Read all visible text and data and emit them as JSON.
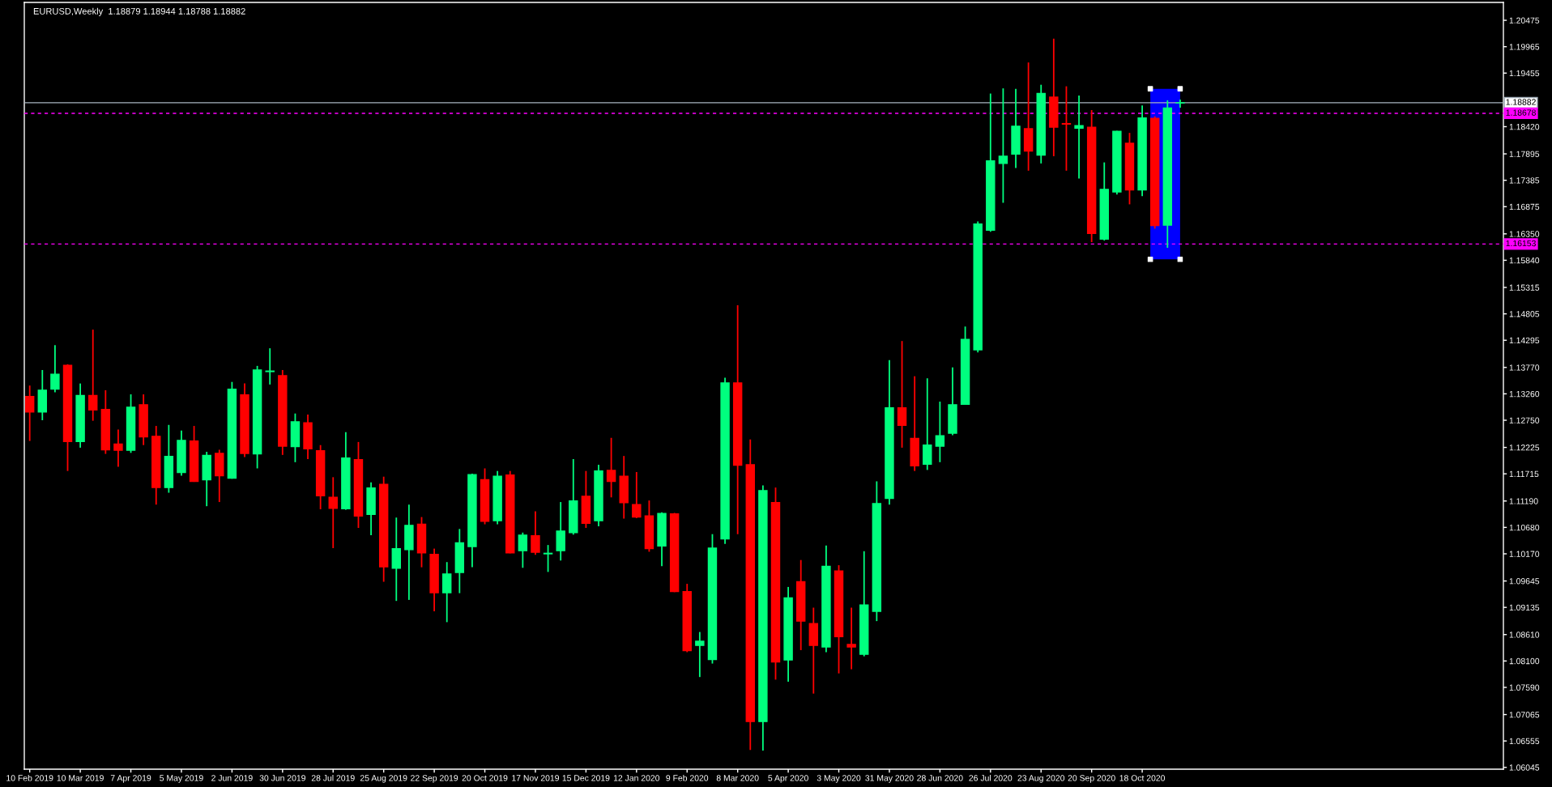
{
  "chart_data": {
    "type": "candlestick",
    "title": "EURUSD,Weekly  1.18879 1.18944 1.18788 1.18882",
    "x": [
      "2019-02-10",
      "2019-02-17",
      "2019-02-24",
      "2019-03-03",
      "2019-03-10",
      "2019-03-17",
      "2019-03-24",
      "2019-03-31",
      "2019-04-07",
      "2019-04-14",
      "2019-04-21",
      "2019-04-28",
      "2019-05-05",
      "2019-05-12",
      "2019-05-19",
      "2019-05-26",
      "2019-06-02",
      "2019-06-09",
      "2019-06-16",
      "2019-06-23",
      "2019-06-30",
      "2019-07-07",
      "2019-07-14",
      "2019-07-21",
      "2019-07-28",
      "2019-08-04",
      "2019-08-11",
      "2019-08-18",
      "2019-08-25",
      "2019-09-01",
      "2019-09-08",
      "2019-09-15",
      "2019-09-22",
      "2019-09-29",
      "2019-10-06",
      "2019-10-13",
      "2019-10-20",
      "2019-10-27",
      "2019-11-03",
      "2019-11-10",
      "2019-11-17",
      "2019-11-24",
      "2019-12-01",
      "2019-12-08",
      "2019-12-15",
      "2019-12-22",
      "2019-12-29",
      "2020-01-05",
      "2020-01-12",
      "2020-01-19",
      "2020-01-26",
      "2020-02-02",
      "2020-02-09",
      "2020-02-16",
      "2020-02-23",
      "2020-03-01",
      "2020-03-08",
      "2020-03-15",
      "2020-03-22",
      "2020-03-29",
      "2020-04-05",
      "2020-04-12",
      "2020-04-19",
      "2020-04-26",
      "2020-05-03",
      "2020-05-10",
      "2020-05-17",
      "2020-05-24",
      "2020-05-31",
      "2020-06-07",
      "2020-06-14",
      "2020-06-21",
      "2020-06-28",
      "2020-07-05",
      "2020-07-12",
      "2020-07-19",
      "2020-07-26",
      "2020-08-02",
      "2020-08-09",
      "2020-08-16",
      "2020-08-23",
      "2020-08-30",
      "2020-09-06",
      "2020-09-13",
      "2020-09-20",
      "2020-09-27",
      "2020-10-04",
      "2020-10-11",
      "2020-10-18",
      "2020-10-25",
      "2020-11-01",
      "2020-11-08"
    ],
    "ohlc": [
      [
        1.1321,
        1.1342,
        1.1235,
        1.1291
      ],
      [
        1.1291,
        1.1372,
        1.1275,
        1.1333
      ],
      [
        1.1335,
        1.142,
        1.1329,
        1.1364
      ],
      [
        1.1381,
        1.1383,
        1.1177,
        1.1234
      ],
      [
        1.1234,
        1.1346,
        1.1222,
        1.1323
      ],
      [
        1.1323,
        1.145,
        1.1274,
        1.1295
      ],
      [
        1.1296,
        1.1333,
        1.121,
        1.1218
      ],
      [
        1.1229,
        1.1257,
        1.1185,
        1.1217
      ],
      [
        1.1217,
        1.1325,
        1.1212,
        1.13
      ],
      [
        1.1305,
        1.1325,
        1.1227,
        1.1243
      ],
      [
        1.1244,
        1.1264,
        1.1112,
        1.1145
      ],
      [
        1.1145,
        1.1266,
        1.1135,
        1.1205
      ],
      [
        1.1174,
        1.1255,
        1.1168,
        1.1236
      ],
      [
        1.1235,
        1.1264,
        1.1156,
        1.1157
      ],
      [
        1.116,
        1.1214,
        1.1109,
        1.1207
      ],
      [
        1.1211,
        1.1218,
        1.1117,
        1.1168
      ],
      [
        1.1163,
        1.1349,
        1.1162,
        1.1335
      ],
      [
        1.1324,
        1.1346,
        1.1204,
        1.1211
      ],
      [
        1.121,
        1.138,
        1.1182,
        1.1372
      ],
      [
        1.1369,
        1.1414,
        1.1344,
        1.137
      ],
      [
        1.1361,
        1.1372,
        1.1208,
        1.1225
      ],
      [
        1.1224,
        1.1288,
        1.1194,
        1.1272
      ],
      [
        1.127,
        1.1286,
        1.12,
        1.122
      ],
      [
        1.1216,
        1.1227,
        1.1103,
        1.1129
      ],
      [
        1.1126,
        1.1165,
        1.1028,
        1.1105
      ],
      [
        1.1104,
        1.1252,
        1.1102,
        1.1202
      ],
      [
        1.1199,
        1.1233,
        1.1067,
        1.109
      ],
      [
        1.1093,
        1.1155,
        1.1053,
        1.1144
      ],
      [
        1.1151,
        1.1166,
        1.0963,
        1.0992
      ],
      [
        1.0989,
        1.1087,
        1.0926,
        1.1027
      ],
      [
        1.1025,
        1.1112,
        1.0928,
        1.1072
      ],
      [
        1.1074,
        1.1088,
        1.0991,
        1.1019
      ],
      [
        1.1016,
        1.1027,
        1.0906,
        1.0942
      ],
      [
        1.0942,
        1.1001,
        1.0885,
        1.0978
      ],
      [
        1.0981,
        1.1065,
        1.0941,
        1.1038
      ],
      [
        1.1031,
        1.1172,
        1.0991,
        1.117
      ],
      [
        1.116,
        1.1182,
        1.1074,
        1.108
      ],
      [
        1.1081,
        1.1177,
        1.1074,
        1.1167
      ],
      [
        1.1169,
        1.1177,
        1.1018,
        1.1019
      ],
      [
        1.1023,
        1.1058,
        1.099,
        1.1053
      ],
      [
        1.1052,
        1.1099,
        1.1015,
        1.102
      ],
      [
        1.1017,
        1.1034,
        1.0982,
        1.1018
      ],
      [
        1.1023,
        1.1117,
        1.1004,
        1.1061
      ],
      [
        1.1058,
        1.12,
        1.1054,
        1.1119
      ],
      [
        1.1128,
        1.1177,
        1.1067,
        1.1076
      ],
      [
        1.1081,
        1.1189,
        1.107,
        1.1177
      ],
      [
        1.1178,
        1.1241,
        1.1126,
        1.1157
      ],
      [
        1.1167,
        1.1206,
        1.1085,
        1.1116
      ],
      [
        1.1112,
        1.1175,
        1.1086,
        1.1088
      ],
      [
        1.109,
        1.112,
        1.1021,
        1.1027
      ],
      [
        1.1032,
        1.1097,
        1.0993,
        1.1095
      ],
      [
        1.1094,
        1.1096,
        1.0943,
        1.0944
      ],
      [
        1.0944,
        1.0959,
        1.0827,
        1.083
      ],
      [
        1.084,
        1.0866,
        1.0779,
        1.0848
      ],
      [
        1.0813,
        1.1055,
        1.0805,
        1.1028
      ],
      [
        1.1046,
        1.1357,
        1.1036,
        1.1347
      ],
      [
        1.1347,
        1.1497,
        1.1055,
        1.1188
      ],
      [
        1.1189,
        1.1238,
        1.0638,
        1.0693
      ],
      [
        1.0693,
        1.1149,
        1.0637,
        1.1139
      ],
      [
        1.1116,
        1.1145,
        1.0774,
        1.0808
      ],
      [
        1.0812,
        1.0953,
        1.077,
        1.0932
      ],
      [
        1.0963,
        1.1005,
        1.0831,
        1.0887
      ],
      [
        1.0882,
        1.0913,
        1.0747,
        1.084
      ],
      [
        1.0837,
        1.1033,
        1.0827,
        1.0993
      ],
      [
        1.0984,
        1.0995,
        1.0786,
        1.0857
      ],
      [
        1.0842,
        1.0913,
        1.0794,
        1.0837
      ],
      [
        1.0823,
        1.1022,
        1.0819,
        1.0918
      ],
      [
        1.0906,
        1.1157,
        1.0887,
        1.1114
      ],
      [
        1.1124,
        1.1391,
        1.1112,
        1.1299
      ],
      [
        1.1299,
        1.1428,
        1.1222,
        1.1265
      ],
      [
        1.124,
        1.136,
        1.1177,
        1.1187
      ],
      [
        1.119,
        1.1356,
        1.1179,
        1.1227
      ],
      [
        1.1225,
        1.1311,
        1.1194,
        1.1245
      ],
      [
        1.125,
        1.1377,
        1.1246,
        1.1305
      ],
      [
        1.1306,
        1.1456,
        1.1305,
        1.1431
      ],
      [
        1.1411,
        1.1659,
        1.1406,
        1.1654
      ],
      [
        1.1642,
        1.1906,
        1.1639,
        1.1776
      ],
      [
        1.1771,
        1.1916,
        1.1695,
        1.1785
      ],
      [
        1.1789,
        1.1915,
        1.1762,
        1.1843
      ],
      [
        1.1838,
        1.1966,
        1.1757,
        1.1795
      ],
      [
        1.1787,
        1.1923,
        1.1771,
        1.1906
      ],
      [
        1.1899,
        1.2012,
        1.1785,
        1.1841
      ],
      [
        1.1848,
        1.192,
        1.1757,
        1.1847
      ],
      [
        1.1839,
        1.1902,
        1.1742,
        1.1844
      ],
      [
        1.1841,
        1.1874,
        1.1619,
        1.1636
      ],
      [
        1.1625,
        1.1773,
        1.1622,
        1.1721
      ],
      [
        1.1716,
        1.1834,
        1.1711,
        1.1833
      ],
      [
        1.181,
        1.183,
        1.1692,
        1.172
      ],
      [
        1.172,
        1.1883,
        1.1708,
        1.1859
      ],
      [
        1.1858,
        1.1862,
        1.1645,
        1.1651
      ],
      [
        1.1652,
        1.1893,
        1.1608,
        1.1878
      ],
      [
        1.18879,
        1.18944,
        1.18788,
        1.18882
      ]
    ],
    "colors": [
      "#ff0000",
      "#00ff7f",
      "#00ff7f",
      "#ff0000",
      "#00ff7f",
      "#ff0000",
      "#ff0000",
      "#ff0000",
      "#00ff7f",
      "#ff0000",
      "#ff0000",
      "#00ff7f",
      "#00ff7f",
      "#ff0000",
      "#00ff7f",
      "#ff0000",
      "#00ff7f",
      "#ff0000",
      "#00ff7f",
      "#00ff7f",
      "#ff0000",
      "#00ff7f",
      "#ff0000",
      "#ff0000",
      "#ff0000",
      "#00ff7f",
      "#ff0000",
      "#00ff7f",
      "#ff0000",
      "#00ff7f",
      "#00ff7f",
      "#ff0000",
      "#ff0000",
      "#00ff7f",
      "#00ff7f",
      "#00ff7f",
      "#ff0000",
      "#00ff7f",
      "#ff0000",
      "#00ff7f",
      "#ff0000",
      "#00ff7f",
      "#00ff7f",
      "#00ff7f",
      "#ff0000",
      "#00ff7f",
      "#ff0000",
      "#ff0000",
      "#ff0000",
      "#ff0000",
      "#00ff7f",
      "#ff0000",
      "#ff0000",
      "#00ff7f",
      "#00ff7f",
      "#00ff7f",
      "#ff0000",
      "#ff0000",
      "#00ff7f",
      "#ff0000",
      "#00ff7f",
      "#ff0000",
      "#ff0000",
      "#00ff7f",
      "#ff0000",
      "#ff0000",
      "#00ff7f",
      "#00ff7f",
      "#00ff7f",
      "#ff0000",
      "#ff0000",
      "#00ff7f",
      "#00ff7f",
      "#00ff7f",
      "#00ff7f",
      "#00ff7f",
      "#00ff7f",
      "#00ff7f",
      "#00ff7f",
      "#ff0000",
      "#00ff7f",
      "#ff0000",
      "#ff0000",
      "#00ff7f",
      "#ff0000",
      "#00ff7f",
      "#00ff7f",
      "#ff0000",
      "#00ff7f",
      "#ff0000",
      "#00ff7f",
      "#00ff7f"
    ],
    "xlim": [
      "2019-02-07",
      "2021-05-06"
    ],
    "ylim": [
      1.0601,
      1.2082
    ],
    "xticks": [
      {
        "value": "2019-02-10",
        "label": "10 Feb 2019"
      },
      {
        "value": "2019-03-10",
        "label": "10 Mar 2019"
      },
      {
        "value": "2019-04-07",
        "label": "7 Apr 2019"
      },
      {
        "value": "2019-05-05",
        "label": "5 May 2019"
      },
      {
        "value": "2019-06-02",
        "label": "2 Jun 2019"
      },
      {
        "value": "2019-06-30",
        "label": "30 Jun 2019"
      },
      {
        "value": "2019-07-28",
        "label": "28 Jul 2019"
      },
      {
        "value": "2019-08-25",
        "label": "25 Aug 2019"
      },
      {
        "value": "2019-09-22",
        "label": "22 Sep 2019"
      },
      {
        "value": "2019-10-20",
        "label": "20 Oct 2019"
      },
      {
        "value": "2019-11-17",
        "label": "17 Nov 2019"
      },
      {
        "value": "2019-12-15",
        "label": "15 Dec 2019"
      },
      {
        "value": "2020-01-12",
        "label": "12 Jan 2020"
      },
      {
        "value": "2020-02-09",
        "label": "9 Feb 2020"
      },
      {
        "value": "2020-03-08",
        "label": "8 Mar 2020"
      },
      {
        "value": "2020-04-05",
        "label": "5 Apr 2020"
      },
      {
        "value": "2020-05-03",
        "label": "3 May 2020"
      },
      {
        "value": "2020-05-31",
        "label": "31 May 2020"
      },
      {
        "value": "2020-06-28",
        "label": "28 Jun 2020"
      },
      {
        "value": "2020-07-26",
        "label": "26 Jul 2020"
      },
      {
        "value": "2020-08-23",
        "label": "23 Aug 2020"
      },
      {
        "value": "2020-09-20",
        "label": "20 Sep 2020"
      },
      {
        "value": "2020-10-18",
        "label": "18 Oct 2020"
      }
    ],
    "yticks": [
      1.20475,
      1.19965,
      1.19455,
      {
        "value": 1.1842,
        "label": "1.18420"
      },
      1.17895,
      1.17385,
      1.16875,
      {
        "value": 1.1635,
        "label": "1.16350"
      },
      {
        "value": 1.1584,
        "label": "1.15840"
      },
      1.15315,
      1.14805,
      1.14295,
      {
        "value": 1.1377,
        "label": "1.13770"
      },
      {
        "value": 1.1326,
        "label": "1.13260"
      },
      {
        "value": 1.1275,
        "label": "1.12750"
      },
      1.12225,
      1.11715,
      {
        "value": 1.1119,
        "label": "1.11190"
      },
      {
        "value": 1.1068,
        "label": "1.10680"
      },
      {
        "value": 1.1017,
        "label": "1.10170"
      },
      1.09645,
      1.09135,
      {
        "value": 1.0861,
        "label": "1.08610"
      },
      {
        "value": 1.081,
        "label": "1.08100"
      },
      {
        "value": 1.0759,
        "label": "1.07590"
      },
      1.07065,
      1.06555,
      1.06045
    ],
    "ref_lines": [
      {
        "axis": "y",
        "value": 1.18882,
        "label": "1.18882",
        "color": "#a8b4c0",
        "line_style": "solid"
      },
      {
        "axis": "y",
        "value": 1.18678,
        "label": "1.18678",
        "color": "#ff00ff",
        "line_style": "dashed"
      },
      {
        "axis": "y",
        "value": 1.16153,
        "label": "1.16153",
        "color": "#ff00ff",
        "line_style": "dashed"
      }
    ]
  }
}
